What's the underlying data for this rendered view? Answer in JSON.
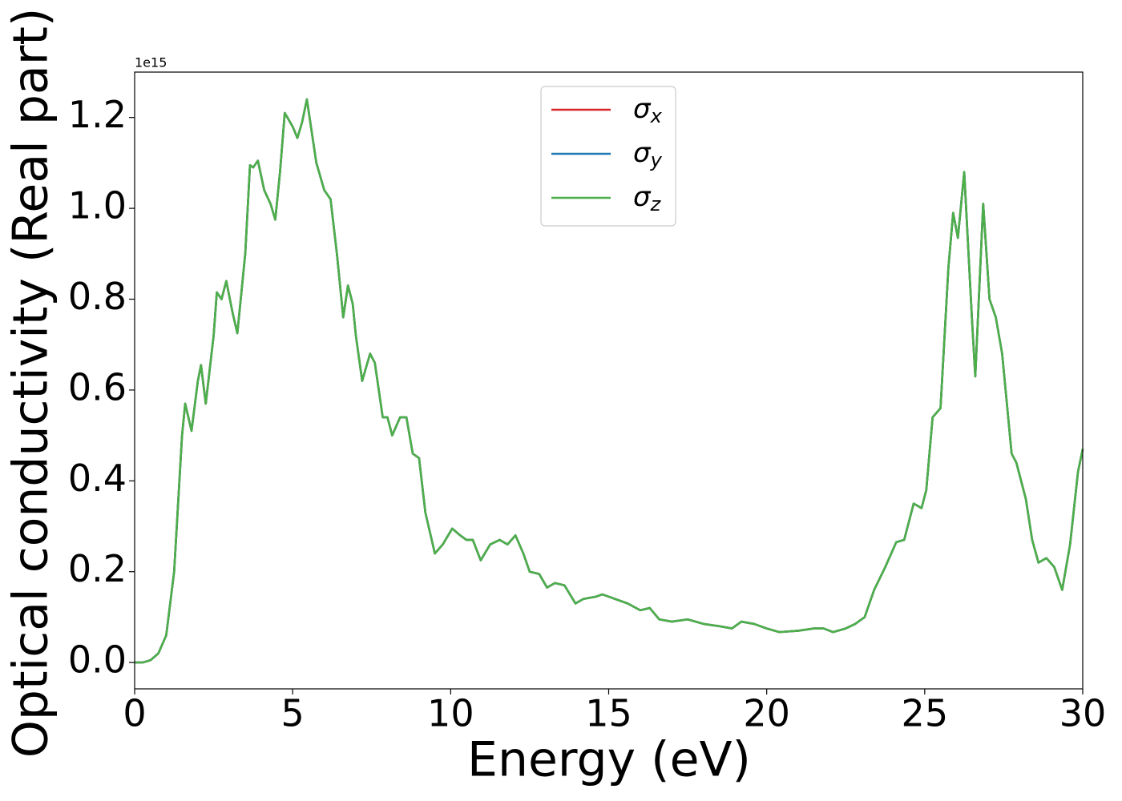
{
  "chart_data": {
    "type": "line",
    "x_label": "Energy (eV)",
    "y_label": "Optical conductivity (Real part)",
    "offset_label": "1e15",
    "xlim": [
      0,
      30
    ],
    "xticks": [
      0,
      5,
      10,
      15,
      20,
      25,
      30
    ],
    "ylim": [
      -0.058,
      1.3
    ],
    "yticks": [
      {
        "value": 0,
        "label": "0.0"
      },
      0.2,
      0.4,
      0.6,
      0.8,
      {
        "value": 1,
        "label": "1.0"
      },
      1.2
    ],
    "legend": "upper center",
    "x": [
      0,
      0.25,
      0.5,
      0.75,
      1.0,
      1.25,
      1.5,
      1.6,
      1.8,
      2.0,
      2.1,
      2.25,
      2.5,
      2.6,
      2.75,
      2.9,
      3.1,
      3.25,
      3.5,
      3.65,
      3.75,
      3.9,
      4.1,
      4.3,
      4.45,
      4.6,
      4.75,
      5.0,
      5.15,
      5.3,
      5.45,
      5.6,
      5.75,
      6.0,
      6.2,
      6.4,
      6.6,
      6.75,
      6.9,
      7.0,
      7.2,
      7.45,
      7.6,
      7.85,
      8.0,
      8.15,
      8.4,
      8.6,
      8.8,
      9.0,
      9.2,
      9.5,
      9.75,
      10.05,
      10.3,
      10.5,
      10.7,
      10.95,
      11.25,
      11.55,
      11.8,
      12.05,
      12.3,
      12.5,
      12.8,
      13.05,
      13.3,
      13.6,
      13.95,
      14.2,
      14.6,
      14.8,
      15.2,
      15.6,
      16.0,
      16.3,
      16.6,
      17.0,
      17.5,
      18.0,
      18.5,
      18.9,
      19.2,
      19.6,
      20.0,
      20.4,
      21.0,
      21.5,
      21.8,
      22.1,
      22.5,
      22.8,
      23.1,
      23.4,
      23.75,
      24.1,
      24.35,
      24.65,
      24.9,
      25.05,
      25.25,
      25.5,
      25.75,
      25.9,
      26.05,
      26.25,
      26.5,
      26.6,
      26.85,
      27.05,
      27.25,
      27.45,
      27.75,
      27.9,
      28.2,
      28.4,
      28.6,
      28.85,
      29.1,
      29.35,
      29.6,
      29.85,
      30.0
    ],
    "series": [
      {
        "name": "σx",
        "color": "#d62728",
        "values": [
          0,
          0,
          0.005,
          0.02,
          0.06,
          0.2,
          0.5,
          0.57,
          0.51,
          0.62,
          0.655,
          0.57,
          0.72,
          0.815,
          0.8,
          0.84,
          0.77,
          0.725,
          0.9,
          1.095,
          1.09,
          1.105,
          1.04,
          1.01,
          0.975,
          1.08,
          1.21,
          1.18,
          1.155,
          1.19,
          1.24,
          1.17,
          1.1,
          1.04,
          1.02,
          0.9,
          0.76,
          0.83,
          0.79,
          0.72,
          0.62,
          0.68,
          0.66,
          0.54,
          0.54,
          0.5,
          0.54,
          0.54,
          0.46,
          0.45,
          0.33,
          0.24,
          0.26,
          0.295,
          0.28,
          0.27,
          0.27,
          0.225,
          0.26,
          0.27,
          0.26,
          0.28,
          0.24,
          0.2,
          0.195,
          0.165,
          0.175,
          0.17,
          0.13,
          0.14,
          0.145,
          0.15,
          0.14,
          0.13,
          0.115,
          0.12,
          0.095,
          0.09,
          0.095,
          0.085,
          0.08,
          0.075,
          0.09,
          0.085,
          0.075,
          0.067,
          0.07,
          0.075,
          0.075,
          0.067,
          0.075,
          0.085,
          0.1,
          0.16,
          0.21,
          0.265,
          0.27,
          0.35,
          0.34,
          0.38,
          0.54,
          0.56,
          0.87,
          0.99,
          0.935,
          1.08,
          0.75,
          0.63,
          1.01,
          0.8,
          0.76,
          0.68,
          0.46,
          0.44,
          0.36,
          0.27,
          0.22,
          0.23,
          0.21,
          0.16,
          0.26,
          0.42,
          0.47
        ]
      },
      {
        "name": "σy",
        "color": "#1f77b4",
        "values": [
          0,
          0,
          0.005,
          0.02,
          0.06,
          0.2,
          0.5,
          0.57,
          0.51,
          0.62,
          0.655,
          0.57,
          0.72,
          0.815,
          0.8,
          0.84,
          0.77,
          0.725,
          0.9,
          1.095,
          1.09,
          1.105,
          1.04,
          1.01,
          0.975,
          1.08,
          1.21,
          1.18,
          1.155,
          1.19,
          1.24,
          1.17,
          1.1,
          1.04,
          1.02,
          0.9,
          0.76,
          0.83,
          0.79,
          0.72,
          0.62,
          0.68,
          0.66,
          0.54,
          0.54,
          0.5,
          0.54,
          0.54,
          0.46,
          0.45,
          0.33,
          0.24,
          0.26,
          0.295,
          0.28,
          0.27,
          0.27,
          0.225,
          0.26,
          0.27,
          0.26,
          0.28,
          0.24,
          0.2,
          0.195,
          0.165,
          0.175,
          0.17,
          0.13,
          0.14,
          0.145,
          0.15,
          0.14,
          0.13,
          0.115,
          0.12,
          0.095,
          0.09,
          0.095,
          0.085,
          0.08,
          0.075,
          0.09,
          0.085,
          0.075,
          0.067,
          0.07,
          0.075,
          0.075,
          0.067,
          0.075,
          0.085,
          0.1,
          0.16,
          0.21,
          0.265,
          0.27,
          0.35,
          0.34,
          0.38,
          0.54,
          0.56,
          0.87,
          0.99,
          0.935,
          1.08,
          0.75,
          0.63,
          1.01,
          0.8,
          0.76,
          0.68,
          0.46,
          0.44,
          0.36,
          0.27,
          0.22,
          0.23,
          0.21,
          0.16,
          0.26,
          0.42,
          0.47
        ]
      },
      {
        "name": "σz",
        "color": "#4daf4a",
        "values": [
          0,
          0,
          0.005,
          0.02,
          0.06,
          0.2,
          0.5,
          0.57,
          0.51,
          0.62,
          0.655,
          0.57,
          0.72,
          0.815,
          0.8,
          0.84,
          0.77,
          0.725,
          0.9,
          1.095,
          1.09,
          1.105,
          1.04,
          1.01,
          0.975,
          1.08,
          1.21,
          1.18,
          1.155,
          1.19,
          1.24,
          1.17,
          1.1,
          1.04,
          1.02,
          0.9,
          0.76,
          0.83,
          0.79,
          0.72,
          0.62,
          0.68,
          0.66,
          0.54,
          0.54,
          0.5,
          0.54,
          0.54,
          0.46,
          0.45,
          0.33,
          0.24,
          0.26,
          0.295,
          0.28,
          0.27,
          0.27,
          0.225,
          0.26,
          0.27,
          0.26,
          0.28,
          0.24,
          0.2,
          0.195,
          0.165,
          0.175,
          0.17,
          0.13,
          0.14,
          0.145,
          0.15,
          0.14,
          0.13,
          0.115,
          0.12,
          0.095,
          0.09,
          0.095,
          0.085,
          0.08,
          0.075,
          0.09,
          0.085,
          0.075,
          0.067,
          0.07,
          0.075,
          0.075,
          0.067,
          0.075,
          0.085,
          0.1,
          0.16,
          0.21,
          0.265,
          0.27,
          0.35,
          0.34,
          0.38,
          0.54,
          0.56,
          0.87,
          0.99,
          0.935,
          1.08,
          0.75,
          0.63,
          1.01,
          0.8,
          0.76,
          0.68,
          0.46,
          0.44,
          0.36,
          0.27,
          0.22,
          0.23,
          0.21,
          0.16,
          0.26,
          0.42,
          0.47
        ]
      }
    ]
  }
}
